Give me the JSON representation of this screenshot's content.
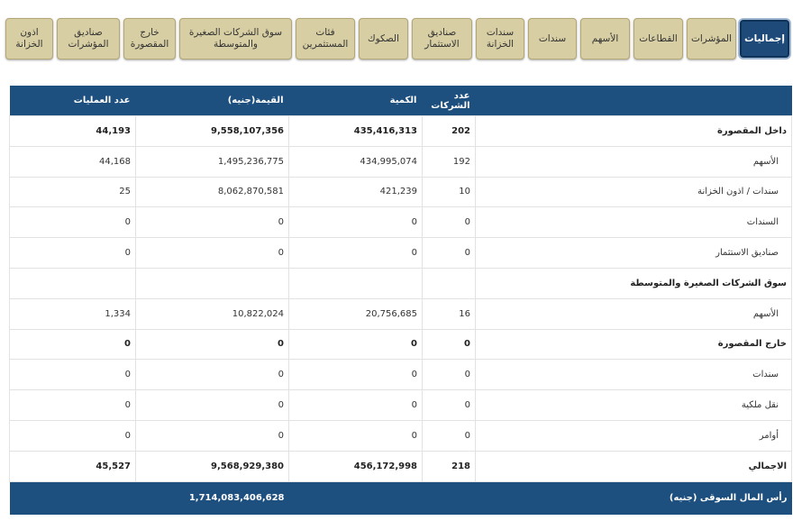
{
  "tabs": [
    "إجماليات",
    "المؤشرات",
    "القطاعات",
    "الأسهم",
    "سندات",
    "سندات الخزانة",
    "صناديق الاستثمار",
    "الصكوك",
    "فئات المستثمرين",
    "سوق الشركات الصغيرة والمتوسطة",
    "خارج المقصورة",
    "صناديق المؤشرات",
    "اذون الخزانة"
  ],
  "table": {
    "headers": [
      "عدد الشركات",
      "الكمية",
      "القيمة(جنيه)",
      "عدد العمليات"
    ],
    "rows": [
      {
        "label": "داخل المقصورة",
        "values": [
          "202",
          "435,416,313",
          "9,558,107,356",
          "44,193"
        ]
      },
      {
        "label": "الأسهم",
        "values": [
          "192",
          "434,995,074",
          "1,495,236,775",
          "44,168"
        ]
      },
      {
        "label": "سندات / اذون الخزانة",
        "values": [
          "10",
          "421,239",
          "8,062,870,581",
          "25"
        ]
      },
      {
        "label": "السندات",
        "values": [
          "0",
          "0",
          "0",
          "0"
        ]
      },
      {
        "label": "صناديق الاستثمار",
        "values": [
          "0",
          "0",
          "0",
          "0"
        ]
      },
      {
        "label": "سوق الشركات الصغيرة والمتوسطة"
      },
      {
        "label": "الأسهم",
        "values": [
          "16",
          "20,756,685",
          "10,822,024",
          "1,334"
        ]
      },
      {
        "label": "خارج المقصورة",
        "values": [
          "0",
          "0",
          "0",
          "0"
        ]
      },
      {
        "label": "سندات",
        "values": [
          "0",
          "0",
          "0",
          "0"
        ]
      },
      {
        "label": "نقل ملكية",
        "values": [
          "0",
          "0",
          "0",
          "0"
        ]
      },
      {
        "label": "أوامر",
        "values": [
          "0",
          "0",
          "0",
          "0"
        ]
      },
      {
        "label": "الاجمالي",
        "values": [
          "218",
          "456,172,998",
          "9,568,929,380",
          "45,527"
        ]
      }
    ],
    "footer": {
      "label": "رأس المال السوقى (جنيه)",
      "value": "1,714,083,406,628"
    }
  }
}
